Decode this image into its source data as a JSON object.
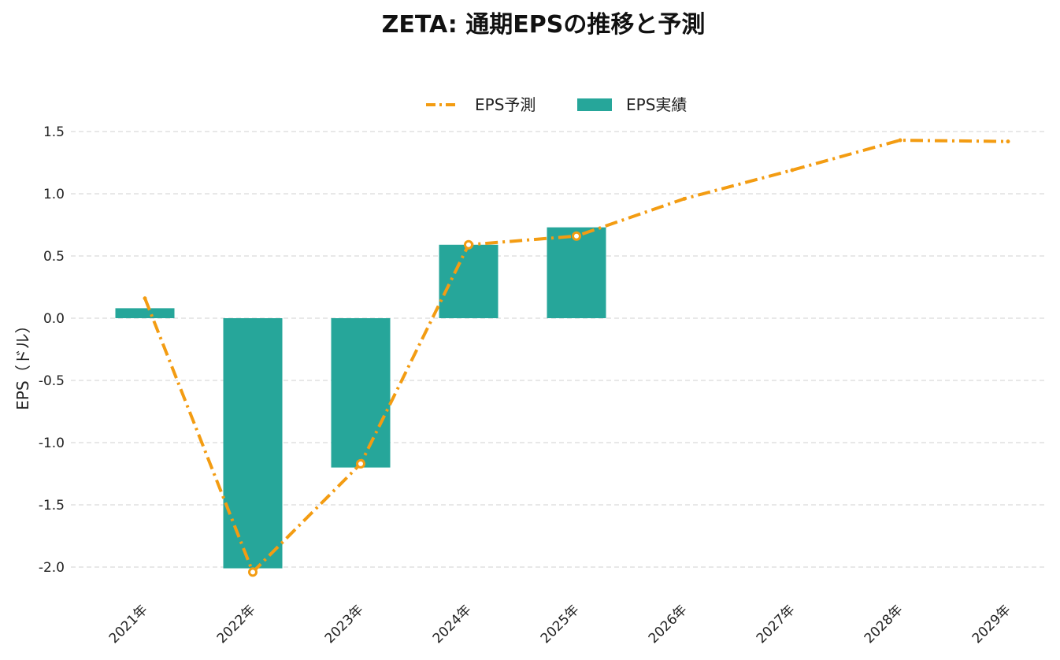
{
  "chart_data": {
    "type": "bar",
    "title": "ZETA: 通期EPSの推移と予測",
    "xlabel": "",
    "ylabel": "EPS（ドル）",
    "categories": [
      "2021年",
      "2022年",
      "2023年",
      "2024年",
      "2025年",
      "2026年",
      "2027年",
      "2028年",
      "2029年"
    ],
    "ylim": [
      -2.1,
      1.6
    ],
    "yticks": [
      1.5,
      1.0,
      0.5,
      0.0,
      -0.5,
      -1.0,
      -1.5,
      -2.0
    ],
    "ytick_labels": [
      "1.5",
      "1.0",
      "0.5",
      "0.0",
      "-0.5",
      "-1.0",
      "-1.5",
      "-2.0"
    ],
    "grid": true,
    "legend_position": "top-center",
    "series": [
      {
        "name": "EPS予測",
        "type": "line",
        "style": "dash-dot",
        "color": "#f39c12",
        "values": [
          0.16,
          -2.04,
          -1.17,
          0.59,
          0.66,
          0.96,
          1.19,
          1.43,
          1.42
        ],
        "marker_indices": [
          1,
          2,
          3,
          4
        ]
      },
      {
        "name": "EPS実績",
        "type": "bar",
        "color": "#26a69a",
        "values": [
          0.08,
          -2.01,
          -1.2,
          0.59,
          0.73,
          null,
          null,
          null,
          null
        ]
      }
    ]
  }
}
